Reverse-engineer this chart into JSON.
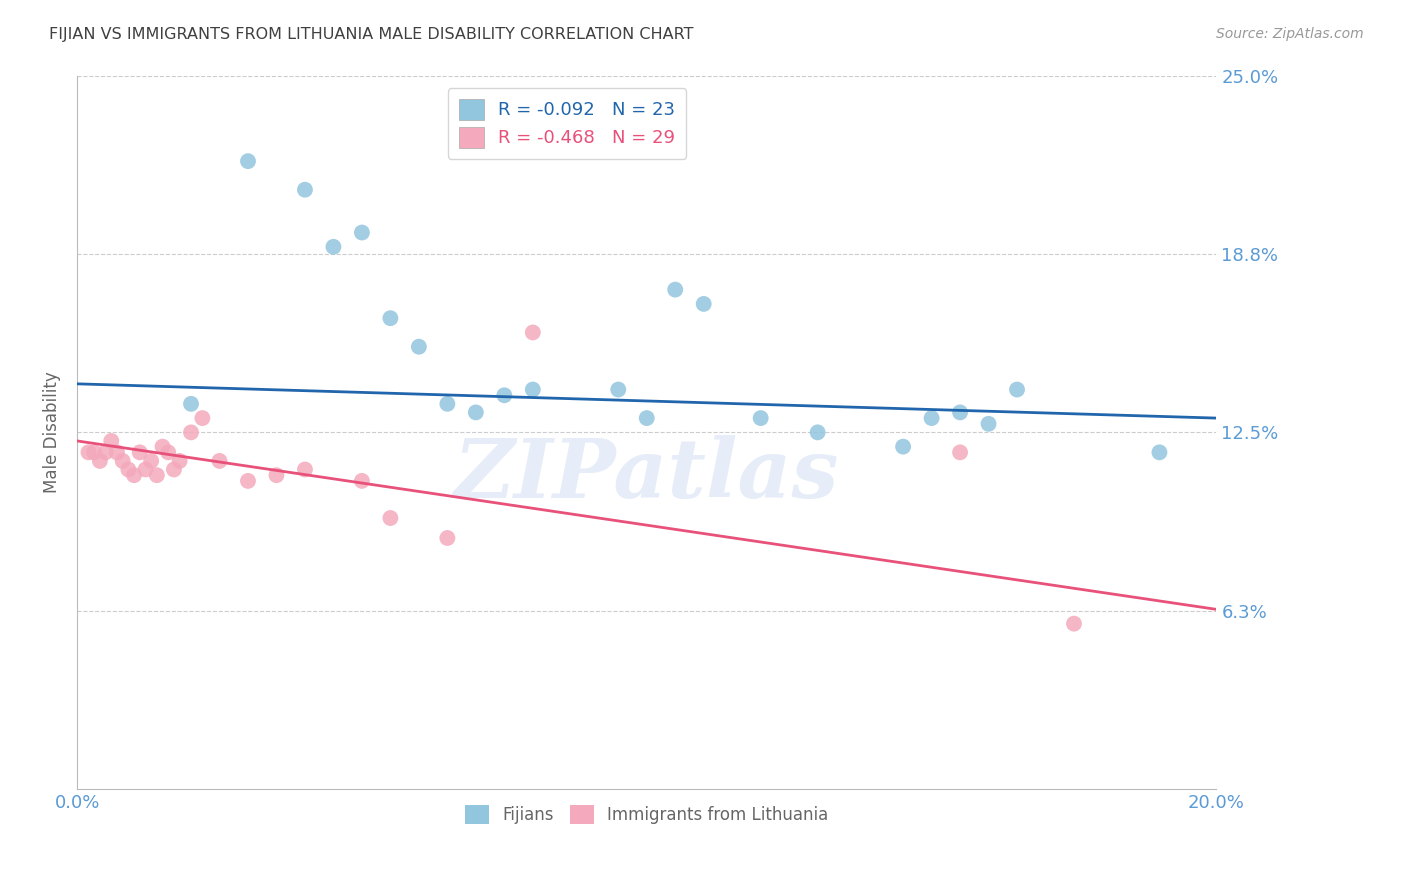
{
  "title": "FIJIAN VS IMMIGRANTS FROM LITHUANIA MALE DISABILITY CORRELATION CHART",
  "source": "Source: ZipAtlas.com",
  "ylabel": "Male Disability",
  "xlim": [
    0.0,
    0.2
  ],
  "ylim": [
    0.0,
    0.25
  ],
  "yticks": [
    0.0625,
    0.125,
    0.1875,
    0.25
  ],
  "ytick_labels": [
    "6.3%",
    "12.5%",
    "18.8%",
    "25.0%"
  ],
  "xticks": [
    0.0,
    0.05,
    0.1,
    0.15,
    0.2
  ],
  "xtick_labels": [
    "0.0%",
    "",
    "",
    "",
    "20.0%"
  ],
  "fijians_R": "-0.092",
  "fijians_N": "23",
  "lithuania_R": "-0.468",
  "lithuania_N": "29",
  "fijian_color": "#92c5de",
  "lithuania_color": "#f4a9bc",
  "trendline_fijian_color": "#2166ac",
  "trendline_lithuania_color": "#e8517a",
  "watermark": "ZIPatlas",
  "fijians_x": [
    0.02,
    0.03,
    0.04,
    0.045,
    0.05,
    0.055,
    0.06,
    0.065,
    0.07,
    0.075,
    0.08,
    0.095,
    0.1,
    0.105,
    0.11,
    0.12,
    0.13,
    0.145,
    0.15,
    0.155,
    0.16,
    0.165,
    0.19
  ],
  "fijians_y": [
    0.135,
    0.22,
    0.21,
    0.19,
    0.195,
    0.165,
    0.155,
    0.135,
    0.132,
    0.138,
    0.14,
    0.14,
    0.13,
    0.175,
    0.17,
    0.13,
    0.125,
    0.12,
    0.13,
    0.132,
    0.128,
    0.14,
    0.118
  ],
  "lithuania_x": [
    0.002,
    0.003,
    0.004,
    0.005,
    0.006,
    0.007,
    0.008,
    0.009,
    0.01,
    0.011,
    0.012,
    0.013,
    0.014,
    0.015,
    0.016,
    0.017,
    0.018,
    0.02,
    0.022,
    0.025,
    0.03,
    0.035,
    0.04,
    0.05,
    0.055,
    0.065,
    0.08,
    0.155,
    0.175
  ],
  "lithuania_y": [
    0.118,
    0.118,
    0.115,
    0.118,
    0.122,
    0.118,
    0.115,
    0.112,
    0.11,
    0.118,
    0.112,
    0.115,
    0.11,
    0.12,
    0.118,
    0.112,
    0.115,
    0.125,
    0.13,
    0.115,
    0.108,
    0.11,
    0.112,
    0.108,
    0.095,
    0.088,
    0.16,
    0.118,
    0.058
  ],
  "background_color": "#ffffff",
  "grid_color": "#cccccc",
  "tick_color": "#5b9bd5",
  "title_color": "#404040",
  "axis_color": "#bbbbbb",
  "legend_facecolor": "#ffffff",
  "legend_edgecolor": "#cccccc",
  "trendline_fijian_start": 0.142,
  "trendline_fijian_end": 0.13,
  "trendline_lit_start": 0.122,
  "trendline_lit_end": 0.063
}
